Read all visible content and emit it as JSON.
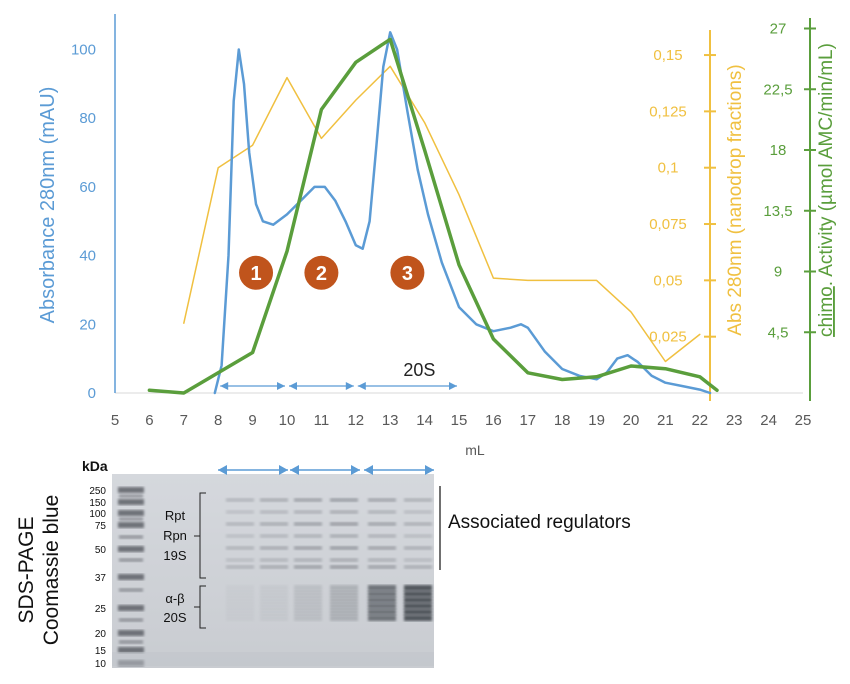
{
  "chart_data": [
    {
      "type": "line",
      "xlabel": "mL",
      "xlim": [
        5,
        25
      ],
      "x_ticks": [
        "5",
        "6",
        "7",
        "8",
        "9",
        "10",
        "11",
        "12",
        "13",
        "14",
        "15",
        "16",
        "17",
        "18",
        "19",
        "20",
        "21",
        "22",
        "23",
        "24",
        "25"
      ],
      "axes": {
        "left": {
          "label": "Absorbance 280nm (mAU)",
          "ticks": [
            "0",
            "20",
            "40",
            "60",
            "80",
            "100"
          ],
          "range": [
            0,
            110
          ],
          "color": "#5b9bd5"
        },
        "right1": {
          "label": "Abs 280nm (nanodrop fractions)",
          "ticks": [
            "0,025",
            "0,05",
            "0,075",
            "0,1",
            "0,125",
            "0,15"
          ],
          "range": [
            0,
            0.15
          ],
          "color": "#f0c040"
        },
        "right2": {
          "label_prefix": "chimo",
          "label_suffix": ". Activity (µmol AMC/min/mL)",
          "ticks": [
            "4,5",
            "9",
            "13,5",
            "18",
            "22,5",
            "27"
          ],
          "range": [
            0,
            27
          ],
          "color": "#5a9e3c"
        }
      },
      "series": [
        {
          "axis": "left",
          "color": "#5b9bd5",
          "x": [
            7.9,
            8.1,
            8.3,
            8.45,
            8.6,
            8.75,
            8.9,
            9.1,
            9.3,
            9.6,
            10.0,
            10.4,
            10.8,
            11.1,
            11.4,
            11.7,
            12.0,
            12.2,
            12.4,
            12.6,
            12.8,
            13.0,
            13.2,
            13.5,
            13.8,
            14.1,
            14.5,
            15.0,
            15.5,
            16.0,
            16.5,
            16.8,
            17.0,
            17.5,
            18.0,
            18.5,
            19.0,
            19.3,
            19.6,
            19.9,
            20.2,
            20.6,
            21.0,
            21.5,
            22.0,
            22.3
          ],
          "y": [
            0,
            8,
            40,
            85,
            100,
            90,
            70,
            55,
            50,
            49,
            52,
            56,
            60,
            60,
            56,
            50,
            43,
            42,
            50,
            72,
            95,
            105,
            100,
            82,
            65,
            52,
            38,
            25,
            20,
            18,
            19,
            20,
            19,
            12,
            7,
            5,
            4,
            6,
            10,
            11,
            9,
            5,
            3,
            2,
            1,
            0
          ]
        },
        {
          "axis": "right1",
          "color": "#f0c040",
          "x": [
            7,
            8,
            9,
            10,
            11,
            12,
            13,
            14,
            15,
            16,
            17,
            18,
            19,
            20,
            21,
            22
          ],
          "y": [
            0.031,
            0.1,
            0.11,
            0.14,
            0.113,
            0.13,
            0.145,
            0.12,
            0.088,
            0.051,
            0.05,
            0.05,
            0.05,
            0.036,
            0.014,
            0.026
          ]
        },
        {
          "axis": "right2",
          "color": "#5a9e3c",
          "x": [
            6,
            7,
            8,
            9,
            10,
            11,
            12,
            13,
            14,
            15,
            16,
            17,
            18,
            19,
            20,
            21,
            22,
            22.5
          ],
          "y": [
            0.2,
            0.0,
            1.5,
            3.0,
            10.5,
            21.0,
            24.5,
            26.2,
            18.0,
            9.5,
            4.0,
            1.5,
            1.0,
            1.2,
            2.0,
            1.8,
            1.2,
            0.2
          ]
        }
      ],
      "peak_labels": [
        {
          "text": "1",
          "x": 9.1,
          "y": 35
        },
        {
          "text": "2",
          "x": 11.0,
          "y": 35
        },
        {
          "text": "3",
          "x": 13.5,
          "y": 35
        }
      ],
      "peak_color": "#c0541c",
      "range_arrows": [
        {
          "from": 8.0,
          "to": 10.0
        },
        {
          "from": 10.0,
          "to": 12.0
        },
        {
          "from": 12.0,
          "to": 15.0,
          "label": "20S"
        }
      ],
      "arrow_color": "#5b9bd5"
    },
    {
      "type": "table",
      "title_lines": [
        "SDS-PAGE",
        "Coomassie blue"
      ],
      "units_label": "kDa",
      "markers": [
        "250",
        "150",
        "100",
        "75",
        "50",
        "37",
        "25",
        "20",
        "15",
        "10"
      ],
      "bracket_groups": [
        {
          "lines": [
            "Rpt",
            "Rpn",
            "19S"
          ]
        },
        {
          "lines": [
            "α-β",
            "20S"
          ]
        }
      ],
      "annotation": "Associated regulators",
      "lane_groups": 3
    }
  ]
}
